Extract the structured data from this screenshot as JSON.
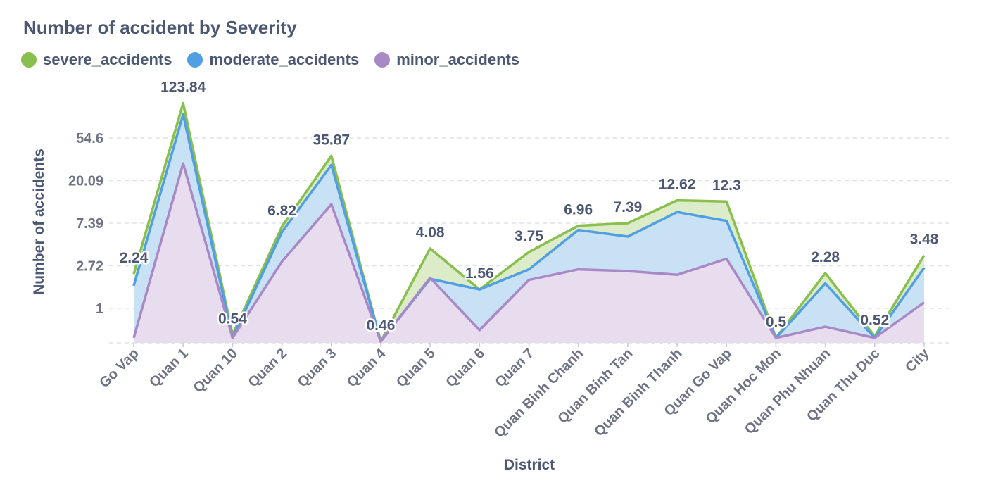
{
  "chart_data": {
    "type": "area",
    "title": "Number of accident by Severity",
    "xlabel": "District",
    "ylabel": "Number of accidents",
    "y_scale": "log",
    "y_ticks": [
      "1",
      "2.72",
      "7.39",
      "20.09",
      "54.6"
    ],
    "grid": true,
    "legend_position": "top-left",
    "categories": [
      "Go Vap",
      "Quan 1",
      "Quan 10",
      "Quan 2",
      "Quan 3",
      "Quan 4",
      "Quan 5",
      "Quan 6",
      "Quan 7",
      "Quan Binh Chanh",
      "Quan Binh Tan",
      "Quan Binh Thanh",
      "Quan Go Vap",
      "Quan Hoc Mon",
      "Quan Phu Nhuan",
      "Quan Thu Duc",
      "City"
    ],
    "series": [
      {
        "name": "severe_accidents",
        "color": "#88bf4d",
        "fill": "#dcebc8",
        "values": [
          2.24,
          123.84,
          0.54,
          6.82,
          35.87,
          0.46,
          4.08,
          1.56,
          3.75,
          6.96,
          7.39,
          12.62,
          12.3,
          0.5,
          2.28,
          0.52,
          3.48
        ]
      },
      {
        "name": "moderate_accidents",
        "color": "#509ee3",
        "fill": "#c9e1f5",
        "values": [
          1.7,
          95,
          0.5,
          6.0,
          29,
          0.46,
          2.0,
          1.56,
          2.5,
          6.3,
          5.4,
          9.6,
          7.8,
          0.5,
          1.8,
          0.5,
          2.6
        ]
      },
      {
        "name": "minor_accidents",
        "color": "#a989c5",
        "fill": "#e7ddef",
        "values": [
          0.5,
          30,
          0.5,
          3.0,
          11.5,
          0.46,
          2.05,
          0.6,
          1.95,
          2.5,
          2.4,
          2.2,
          3.2,
          0.5,
          0.65,
          0.5,
          1.15
        ]
      }
    ],
    "data_labels": [
      "2.24",
      "123.84",
      "0.54",
      "6.82",
      "35.87",
      "0.46",
      "4.08",
      "1.56",
      "3.75",
      "6.96",
      "7.39",
      "12.62",
      "12.3",
      "0.5",
      "2.28",
      "0.52",
      "3.48"
    ]
  }
}
